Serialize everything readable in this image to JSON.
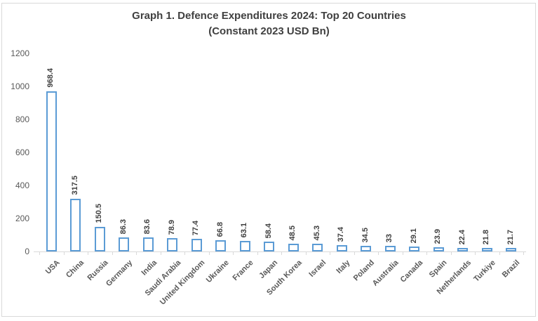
{
  "chart_data": {
    "type": "bar",
    "title": "Graph 1. Defence Expenditures 2024: Top 20 Countries",
    "subtitle": "(Constant 2023 USD Bn)",
    "categories": [
      "USA",
      "China",
      "Russia",
      "Germany",
      "India",
      "Saudi Arabia",
      "United Kingdom",
      "Ukraine",
      "France",
      "Japan",
      "South Korea",
      "Israel",
      "Italy",
      "Poland",
      "Australia",
      "Canada",
      "Spain",
      "Netherlands",
      "Turkiye",
      "Brazil"
    ],
    "values": [
      968.4,
      317.5,
      150.5,
      86.3,
      83.6,
      78.9,
      77.4,
      66.8,
      63.1,
      58.4,
      48.5,
      45.3,
      37.4,
      34.5,
      33,
      29.1,
      23.9,
      22.4,
      21.8,
      21.7
    ],
    "value_labels": [
      "968.4",
      "317.5",
      "150.5",
      "86.3",
      "83.6",
      "78.9",
      "77.4",
      "66.8",
      "63.1",
      "58.4",
      "48.5",
      "45.3",
      "37.4",
      "34.5",
      "33",
      "29.1",
      "23.9",
      "22.4",
      "21.8",
      "21.7"
    ],
    "xlabel": "",
    "ylabel": "",
    "ylim": [
      0,
      1200
    ],
    "yticks": [
      0,
      200,
      400,
      600,
      800,
      1000,
      1200
    ],
    "grid": false,
    "legend": "none",
    "bar_fill": "#ffffff",
    "bar_border": "#5b9bd5",
    "value_label_color": "#404040",
    "axis_label_color": "#595959",
    "axis_line_color": "#d9d9d9"
  }
}
